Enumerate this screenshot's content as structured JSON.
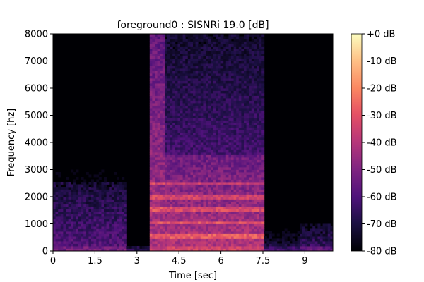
{
  "chart_data": {
    "type": "heatmap",
    "title": "foreground0 : SISNRi 19.0 [dB]",
    "xlabel": "Time [sec]",
    "ylabel": "Frequency [hz]",
    "xlim": [
      0,
      10
    ],
    "ylim": [
      0,
      8000
    ],
    "x_ticks": [
      0,
      1.5,
      3,
      4.5,
      6,
      7.5,
      9
    ],
    "x_tick_labels": [
      "0",
      "1.5",
      "3",
      "4.5",
      "6",
      "7.5",
      "9"
    ],
    "y_ticks": [
      0,
      1000,
      2000,
      3000,
      4000,
      5000,
      6000,
      7000,
      8000
    ],
    "y_tick_labels": [
      "0",
      "1000",
      "2000",
      "3000",
      "4000",
      "5000",
      "6000",
      "7000",
      "8000"
    ],
    "colormap": "magma",
    "colorbar": {
      "range": [
        -80,
        0
      ],
      "ticks": [
        0,
        -10,
        -20,
        -30,
        -40,
        -50,
        -60,
        -70,
        -80
      ],
      "tick_labels": [
        "+0 dB",
        "-10 dB",
        "-20 dB",
        "-30 dB",
        "-40 dB",
        "-50 dB",
        "-60 dB",
        "-70 dB",
        "-80 dB"
      ]
    },
    "energy_segments": [
      {
        "t_start": 0.0,
        "t_end": 2.6,
        "f_max": 2500,
        "level_db": -58
      },
      {
        "t_start": 2.6,
        "t_end": 3.45,
        "f_max": 400,
        "level_db": -72
      },
      {
        "t_start": 3.45,
        "t_end": 4.0,
        "f_max": 8000,
        "level_db": -42
      },
      {
        "t_start": 4.0,
        "t_end": 7.55,
        "f_max": 3500,
        "level_db": -40
      },
      {
        "t_start": 7.55,
        "t_end": 8.8,
        "f_max": 800,
        "level_db": -68
      },
      {
        "t_start": 8.8,
        "t_end": 10.0,
        "f_max": 1000,
        "level_db": -62
      }
    ],
    "harmonic_bands_hz": [
      550,
      1050,
      1550,
      2000,
      2500
    ],
    "grid": false
  }
}
